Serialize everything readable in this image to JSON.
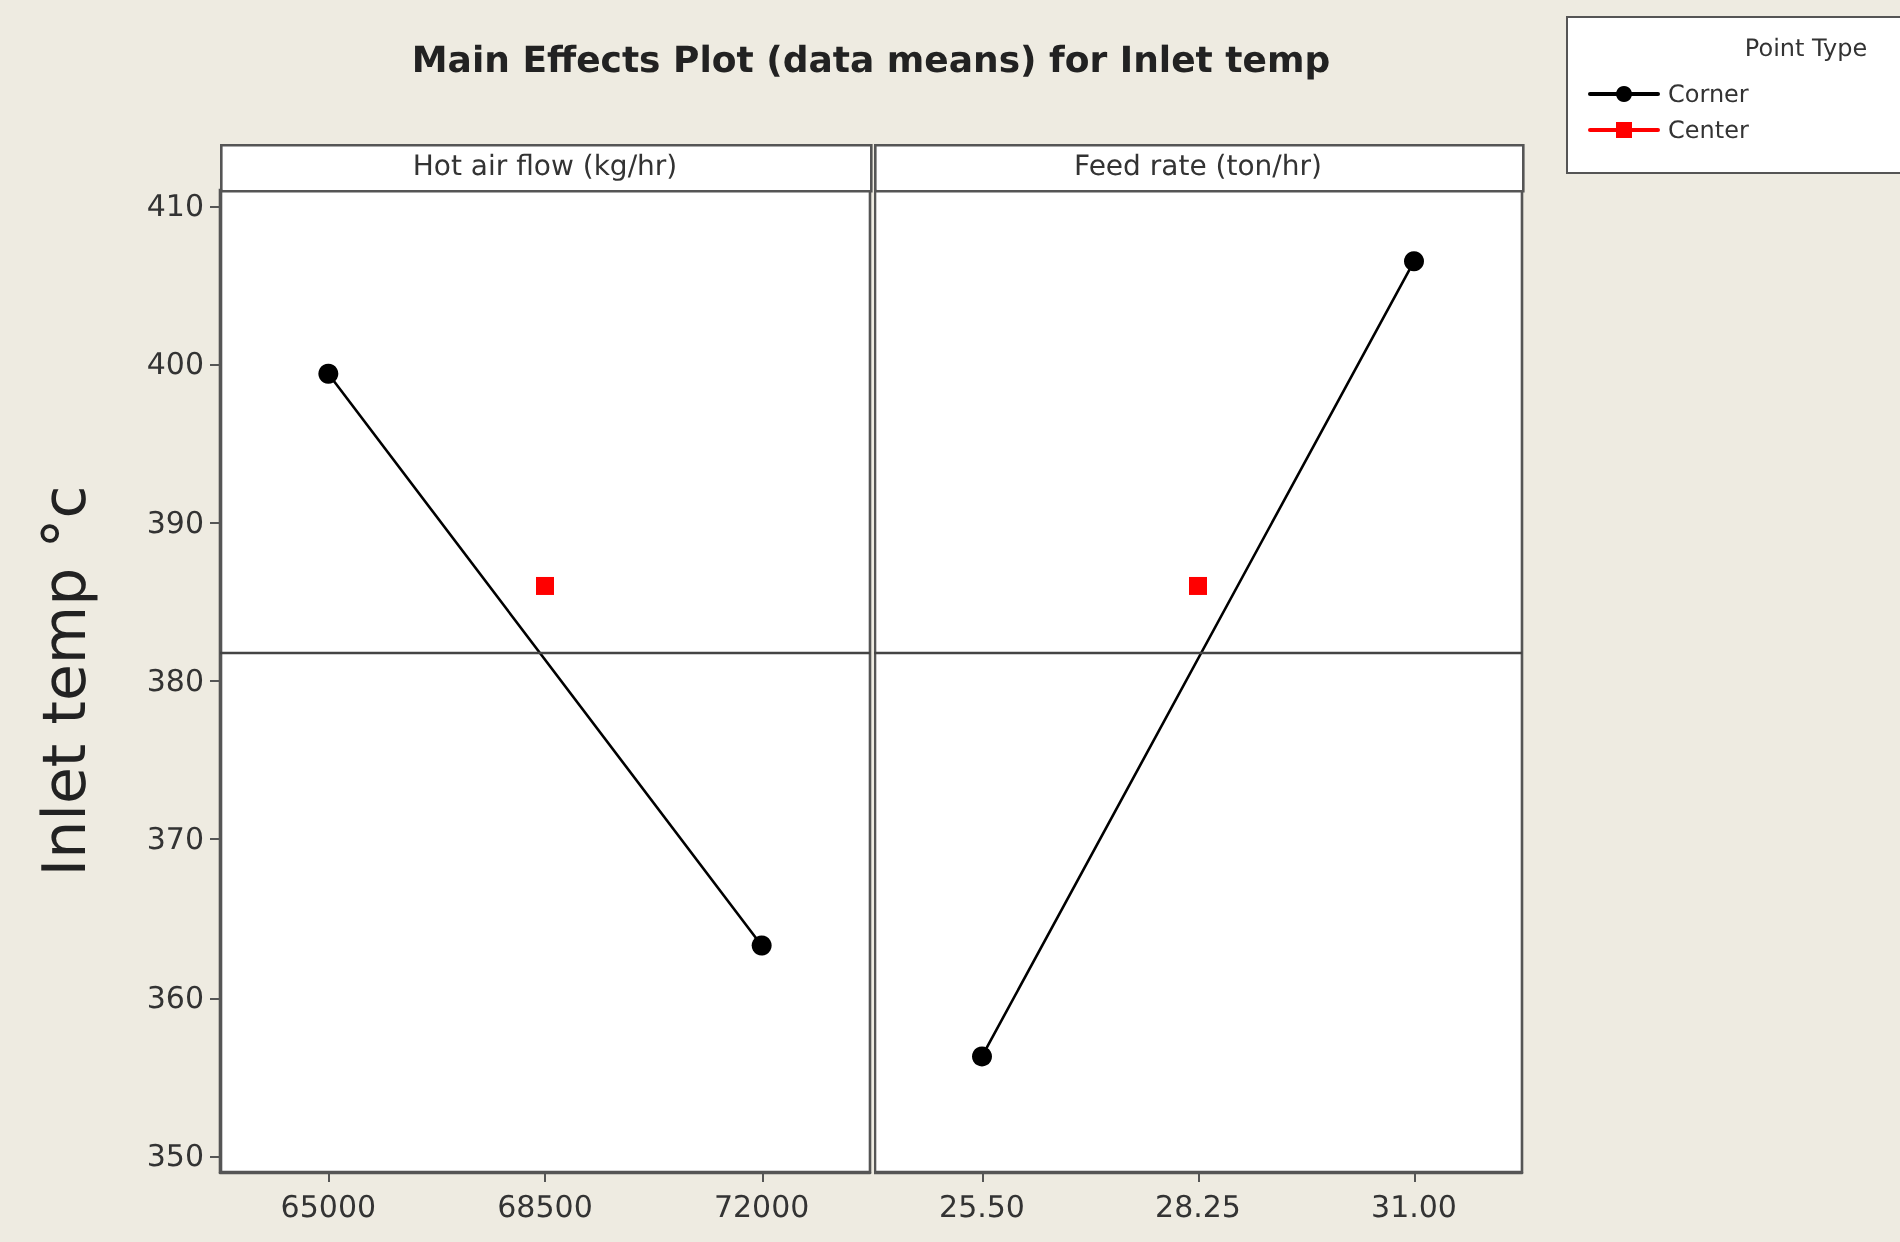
{
  "chart_data": [
    {
      "type": "line",
      "title": "Main Effects Plot (data means) for Inlet temp",
      "subtitle": "Hot air flow (kg/hr)",
      "ylabel": "Inlet temp °c",
      "categories": [
        "65000",
        "68500",
        "72000"
      ],
      "series": [
        {
          "color": "#000000",
          "marker": "circle",
          "values": [
            399.4,
            null,
            363.3
          ]
        },
        {
          "color": "#ff0000",
          "marker": "square",
          "values": [
            null,
            386.0,
            null
          ]
        }
      ],
      "ylim": [
        349,
        411
      ],
      "yticks": [
        350,
        360,
        370,
        380,
        390,
        400,
        410
      ],
      "ref_lines": [
        {
          "axis": "y",
          "value": 381.8
        }
      ],
      "grid": false,
      "legend": false
    },
    {
      "type": "line",
      "subtitle": "Feed rate (ton/hr)",
      "categories": [
        "25.50",
        "28.25",
        "31.00"
      ],
      "series": [
        {
          "name": "Corner",
          "color": "#000000",
          "marker": "circle",
          "values": [
            356.3,
            null,
            406.5
          ]
        },
        {
          "name": "Center",
          "color": "#ff0000",
          "marker": "square",
          "values": [
            null,
            386.0,
            null
          ]
        }
      ],
      "ylim": [
        349,
        411
      ],
      "yticks": [
        350,
        360,
        370,
        380,
        390,
        400,
        410
      ],
      "ref_lines": [
        {
          "axis": "y",
          "value": 381.8
        }
      ],
      "grid": false,
      "tick_labels": "x",
      "legend": "right",
      "legend_title": "Point Type"
    }
  ]
}
